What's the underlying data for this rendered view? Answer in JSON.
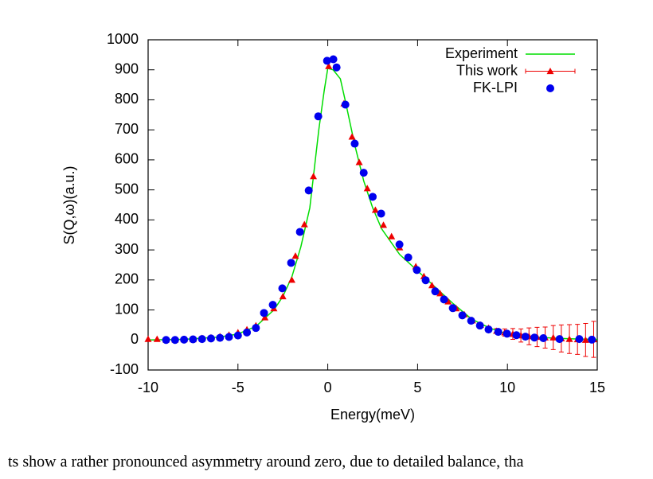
{
  "chart_data": {
    "type": "scatter",
    "xlabel": "Energy(meV)",
    "ylabel": "S(Q,ω)(a.u.)",
    "xlim": [
      -10,
      15
    ],
    "xticks": [
      -10,
      -5,
      0,
      5,
      10,
      15
    ],
    "ylim": [
      -100,
      1000
    ],
    "yticks": [
      -100,
      0,
      100,
      200,
      300,
      400,
      500,
      600,
      700,
      800,
      900,
      1000
    ],
    "legend": "upper right",
    "series": [
      {
        "name": "Experiment",
        "color": "#00dd00",
        "marker": "line",
        "x": [
          -10,
          -8,
          -6,
          -5,
          -4,
          -3,
          -2.5,
          -2,
          -1.5,
          -1,
          -0.5,
          -0.2,
          0,
          0.3,
          0.7,
          1,
          1.5,
          2,
          2.5,
          3,
          4,
          5,
          6,
          7,
          8,
          9,
          10,
          11,
          12,
          13,
          14,
          15
        ],
        "values": [
          0,
          2,
          10,
          20,
          45,
          100,
          145,
          210,
          310,
          440,
          700,
          830,
          905,
          900,
          870,
          790,
          650,
          530,
          440,
          370,
          285,
          230,
          175,
          120,
          70,
          40,
          20,
          12,
          8,
          5,
          3,
          2
        ]
      },
      {
        "name": "This work",
        "color": "#ee0000",
        "marker": "triangle",
        "x": [
          -10,
          -9.5,
          -9,
          -8.5,
          -8,
          -7.5,
          -7,
          -6.5,
          -6,
          -5.5,
          -5,
          -4.5,
          -4,
          -3.5,
          -3,
          -2.5,
          -2,
          -1.8,
          -1.3,
          -0.8,
          0.05,
          0.9,
          1.35,
          1.75,
          2.2,
          2.65,
          3.1,
          3.55,
          4,
          4.45,
          4.9,
          5.35,
          5.8,
          6.25,
          6.7,
          7.15,
          7.6,
          8.05,
          8.5,
          8.95,
          9.4,
          9.85,
          10.3,
          10.75,
          11.2,
          11.65,
          12.1,
          12.55,
          13,
          13.45,
          13.9,
          14.35,
          14.8
        ],
        "values": [
          3,
          3,
          1,
          1,
          2,
          2,
          6,
          8,
          12,
          17,
          25,
          35,
          48,
          75,
          105,
          145,
          200,
          280,
          385,
          545,
          912,
          788,
          677,
          592,
          505,
          433,
          383,
          345,
          308,
          275,
          245,
          212,
          182,
          155,
          128,
          105,
          85,
          65,
          50,
          40,
          30,
          25,
          20,
          15,
          12,
          10,
          8,
          8,
          5,
          3,
          2,
          0,
          2
        ],
        "errors": [
          0,
          0,
          0,
          0,
          0,
          0,
          0,
          0,
          0,
          0,
          0,
          0,
          0,
          0,
          0,
          0,
          0,
          0,
          0,
          0,
          0,
          0,
          0,
          0,
          0,
          0,
          0,
          0,
          0,
          0,
          0,
          0,
          0,
          0,
          0,
          0,
          0,
          0,
          0,
          5,
          8,
          12,
          18,
          22,
          28,
          32,
          35,
          40,
          45,
          48,
          50,
          55,
          60
        ]
      },
      {
        "name": "FK-LPI",
        "color": "#0000ee",
        "marker": "circle",
        "x": [
          -9,
          -8.5,
          -8,
          -7.5,
          -7,
          -6.5,
          -6,
          -5.5,
          -5,
          -4.5,
          -4,
          -3.55,
          -3.06,
          -2.53,
          -2.04,
          -1.55,
          -1.06,
          -0.53,
          -0.04,
          0.31,
          0.49,
          0.98,
          1.5,
          2,
          2.5,
          2.97,
          3.99,
          4.48,
          4.96,
          5.45,
          5.98,
          6.47,
          6.96,
          7.49,
          7.98,
          8.47,
          8.95,
          9.49,
          9.98,
          10.5,
          11,
          11.5,
          12,
          12.9,
          14,
          14.7
        ],
        "values": [
          0,
          0,
          1,
          2,
          3,
          5,
          7,
          10,
          15,
          25,
          40,
          90,
          117,
          172,
          257,
          360,
          498,
          745,
          930,
          935,
          908,
          784,
          654,
          557,
          477,
          421,
          318,
          275,
          233,
          199,
          162,
          135,
          106,
          82,
          64,
          48,
          35,
          27,
          21,
          16,
          11,
          8,
          6,
          3,
          3,
          1
        ]
      }
    ]
  },
  "caption": "ts show a rather pronounced asymmetry around zero, due to detailed balance, tha"
}
